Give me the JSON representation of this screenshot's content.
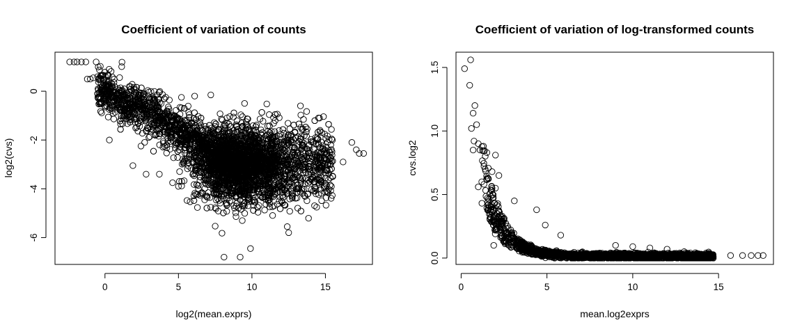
{
  "chart_data": [
    {
      "type": "scatter",
      "title": "Coefficient of variation of counts",
      "xlabel": "log2(mean.exprs)",
      "ylabel": "log2(cvs)",
      "xlim": [
        -3.4,
        18.2
      ],
      "ylim": [
        -7.1,
        1.6
      ],
      "xticks": [
        0,
        5,
        10,
        15
      ],
      "yticks": [
        -6,
        -4,
        -2,
        0
      ],
      "grid": false,
      "legend": "none",
      "marker": "open-circle",
      "points": [
        [
          -2.4,
          1.2
        ],
        [
          -2.1,
          1.2
        ],
        [
          -1.9,
          1.2
        ],
        [
          -1.6,
          1.2
        ],
        [
          -1.3,
          1.2
        ],
        [
          -0.6,
          1.2
        ],
        [
          -1.2,
          0.5
        ],
        [
          -1.0,
          0.5
        ],
        [
          -0.8,
          0.55
        ],
        [
          -0.5,
          0.6
        ],
        [
          -0.2,
          0.65
        ],
        [
          0.0,
          0.78
        ],
        [
          -0.4,
          -0.05
        ],
        [
          -0.2,
          -0.1
        ],
        [
          0.1,
          0.4
        ],
        [
          0.5,
          0.2
        ],
        [
          0.3,
          -2.0
        ],
        [
          1.9,
          -3.05
        ],
        [
          7.2,
          -0.15
        ],
        [
          4.6,
          -3.75
        ],
        [
          9.2,
          -6.8
        ],
        [
          8.1,
          -6.8
        ],
        [
          9.9,
          -6.45
        ],
        [
          12.5,
          -5.8
        ],
        [
          12.4,
          -5.55
        ],
        [
          15.0,
          -3.0
        ],
        [
          15.5,
          -3.5
        ],
        [
          16.2,
          -2.9
        ],
        [
          16.8,
          -2.1
        ],
        [
          17.1,
          -2.4
        ],
        [
          17.3,
          -2.55
        ],
        [
          17.6,
          -2.55
        ],
        [
          14.6,
          -1.1
        ],
        [
          13.3,
          -0.6
        ],
        [
          9.5,
          -0.5
        ],
        [
          6.1,
          -0.2
        ],
        [
          5.2,
          -0.25
        ],
        [
          5.0,
          -3.9
        ],
        [
          3.7,
          -3.4
        ],
        [
          2.8,
          -3.4
        ]
      ]
    },
    {
      "type": "scatter",
      "title": "Coefficient of variation of log-transformed counts",
      "xlabel": "mean.log2exprs",
      "ylabel": "cvs.log2",
      "xlim": [
        -0.3,
        18.2
      ],
      "ylim": [
        -0.05,
        1.62
      ],
      "xticks": [
        0,
        5,
        10,
        15
      ],
      "yticks": [
        0.0,
        0.5,
        1.0,
        1.5
      ],
      "grid": false,
      "legend": "none",
      "marker": "open-circle",
      "points": [
        [
          0.2,
          1.49
        ],
        [
          0.55,
          1.56
        ],
        [
          0.5,
          1.36
        ],
        [
          0.8,
          1.2
        ],
        [
          0.7,
          1.14
        ],
        [
          0.6,
          1.02
        ],
        [
          0.9,
          1.05
        ],
        [
          0.75,
          0.92
        ],
        [
          1.0,
          0.9
        ],
        [
          1.1,
          0.85
        ],
        [
          1.3,
          0.88
        ],
        [
          0.7,
          0.85
        ],
        [
          1.5,
          0.83
        ],
        [
          2.0,
          0.81
        ],
        [
          1.0,
          0.56
        ],
        [
          1.2,
          0.6
        ],
        [
          1.4,
          0.7
        ],
        [
          1.8,
          0.68
        ],
        [
          2.2,
          0.65
        ],
        [
          2.0,
          0.55
        ],
        [
          1.9,
          0.1
        ],
        [
          3.1,
          0.45
        ],
        [
          4.4,
          0.38
        ],
        [
          4.9,
          0.26
        ],
        [
          5.8,
          0.18
        ],
        [
          15.7,
          0.02
        ],
        [
          16.4,
          0.02
        ],
        [
          16.9,
          0.02
        ],
        [
          17.3,
          0.02
        ],
        [
          17.6,
          0.02
        ],
        [
          14.5,
          0.03
        ],
        [
          13.0,
          0.05
        ],
        [
          12.0,
          0.07
        ],
        [
          11.0,
          0.08
        ],
        [
          10.0,
          0.09
        ],
        [
          9.0,
          0.1
        ]
      ]
    }
  ]
}
